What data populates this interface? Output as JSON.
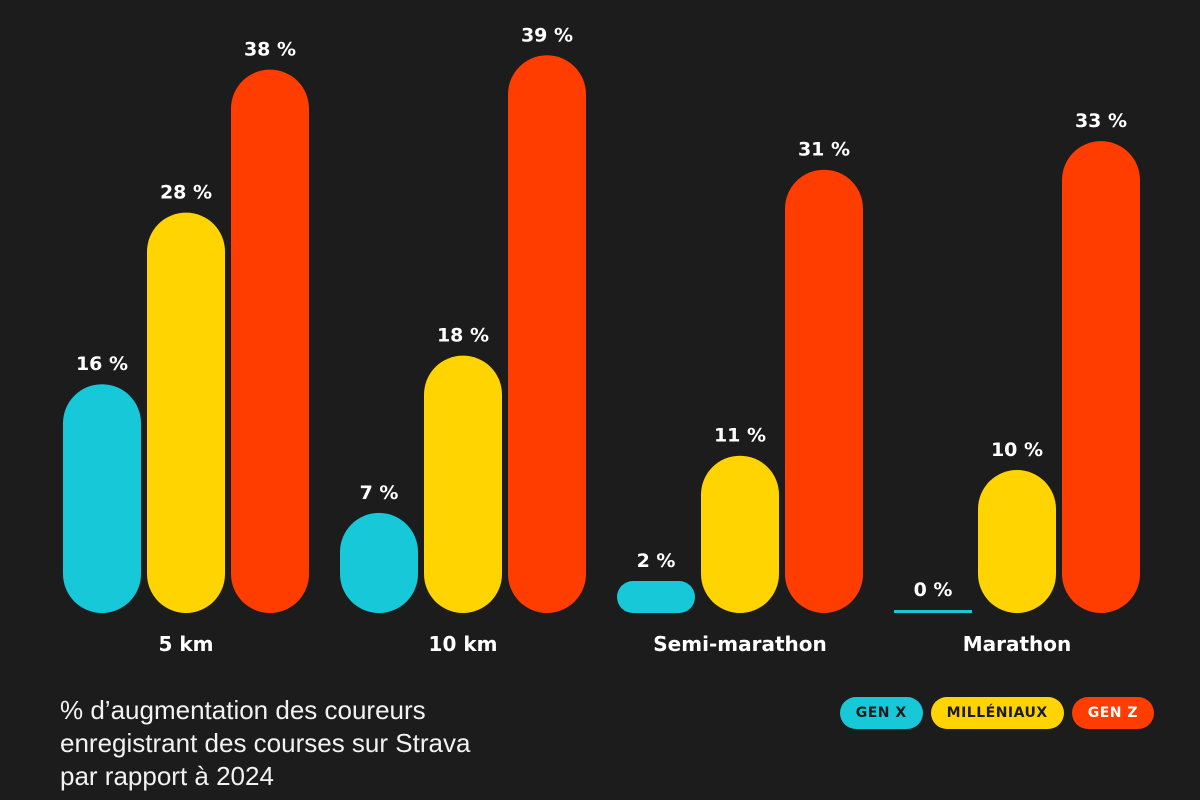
{
  "chart_data": {
    "type": "bar",
    "categories": [
      "5 km",
      "10 km",
      "Semi-marathon",
      "Marathon"
    ],
    "series": [
      {
        "name": "GEN X",
        "color": "#16c8d8",
        "values": [
          16,
          7,
          2,
          0
        ],
        "text_color": "#1c1c1c"
      },
      {
        "name": "MILLÉNIAUX",
        "color": "#ffd400",
        "values": [
          28,
          18,
          11,
          10
        ],
        "text_color": "#1c1c1c"
      },
      {
        "name": "GEN Z",
        "color": "#ff3d00",
        "values": [
          38,
          39,
          31,
          33
        ],
        "text_color": "#ffffff"
      }
    ],
    "value_suffix": " %",
    "title": "",
    "caption": [
      "% d’augmentation des coureurs",
      "enregistrant des courses sur Strava",
      "par rapport à 2024"
    ],
    "legend_position": "bottom-right",
    "grid": false,
    "background": "#1c1c1c"
  }
}
